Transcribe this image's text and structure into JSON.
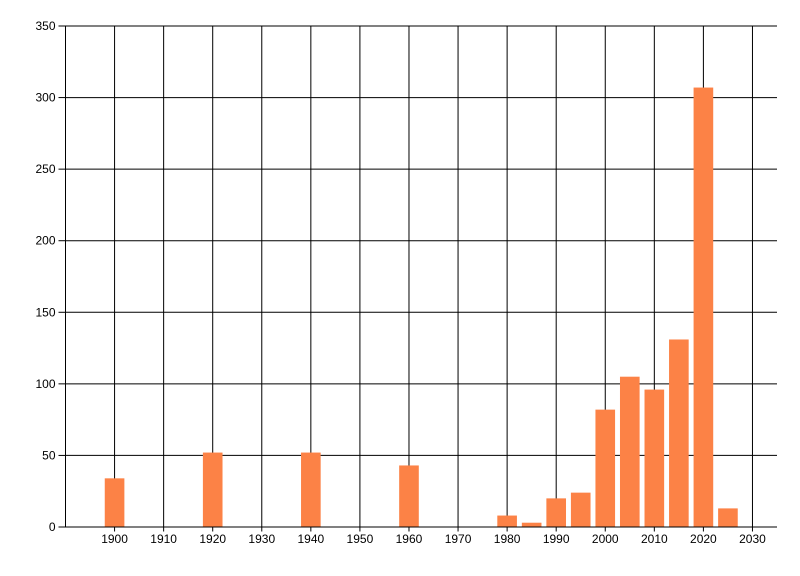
{
  "figure": {
    "background": "#ffffff"
  },
  "chart_data": {
    "type": "bar",
    "title": "",
    "xlabel": "",
    "ylabel": "",
    "x": [
      1900,
      1920,
      1940,
      1960,
      1980,
      1985,
      1990,
      1995,
      2000,
      2005,
      2010,
      2015,
      2020,
      2025
    ],
    "values": [
      34,
      52,
      52,
      43,
      8,
      3,
      20,
      24,
      82,
      105,
      96,
      131,
      307,
      13
    ],
    "xlim": [
      1890,
      2035
    ],
    "ylim": [
      0,
      350
    ],
    "xticks": [
      1900,
      1910,
      1920,
      1930,
      1940,
      1950,
      1960,
      1970,
      1980,
      1990,
      2000,
      2010,
      2020,
      2030
    ],
    "yticks": [
      0,
      50,
      100,
      150,
      200,
      250,
      300,
      350
    ],
    "bar_width_years": 4,
    "bar_color": "#FC8246",
    "grid_color": "#000000",
    "axis_color": "#000000",
    "background": "#ffffff",
    "grid": "on",
    "legend": "none"
  }
}
